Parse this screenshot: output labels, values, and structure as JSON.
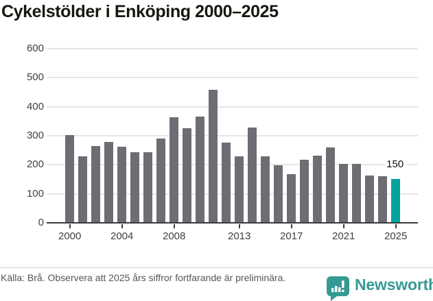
{
  "title": "Cykelstölder i Enköping 2000–2025",
  "chart_data": {
    "type": "bar",
    "x": [
      2000,
      2001,
      2002,
      2003,
      2004,
      2005,
      2006,
      2007,
      2008,
      2009,
      2010,
      2011,
      2012,
      2013,
      2014,
      2015,
      2016,
      2017,
      2018,
      2019,
      2020,
      2021,
      2022,
      2023,
      2024,
      2025
    ],
    "values": [
      300,
      226,
      262,
      276,
      261,
      242,
      242,
      289,
      361,
      324,
      364,
      455,
      274,
      226,
      326,
      226,
      197,
      165,
      216,
      228,
      258,
      201,
      201,
      161,
      158,
      150
    ],
    "title": "Cykelstölder i Enköping 2000–2025",
    "xlabel": "",
    "ylabel": "",
    "ylim": [
      0,
      600
    ],
    "yticks": [
      0,
      100,
      200,
      300,
      400,
      500,
      600
    ],
    "xticks": [
      2000,
      2004,
      2008,
      2013,
      2017,
      2021,
      2025
    ],
    "grid": true,
    "legend": "none",
    "bar_color": "#6e6d73",
    "highlight_year": 2025,
    "highlight_color": "#00a49c",
    "highlight_label": "150"
  },
  "footer": {
    "source_text": "Källa: Brå. Observera att 2025 års siffror fortfarande är preliminära.",
    "brand": "Newsworthy",
    "brand_color": "#359a94"
  },
  "icons": {
    "logo": "newsworthy-speech-bubble-chart-icon"
  }
}
